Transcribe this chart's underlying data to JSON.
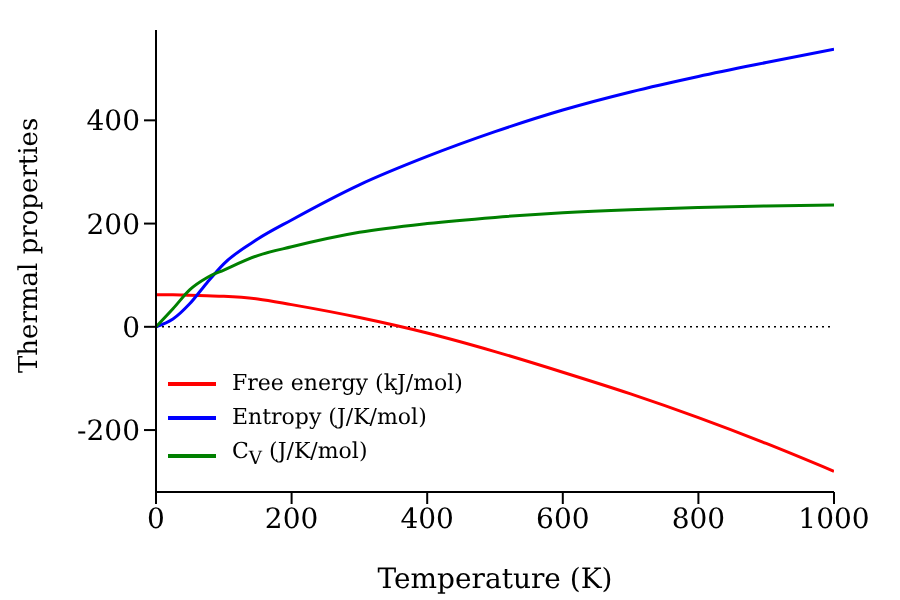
{
  "chart_data": {
    "type": "line",
    "xlabel": "Temperature (K)",
    "ylabel": "Thermal properties",
    "x": [
      0,
      25,
      50,
      75,
      100,
      150,
      200,
      300,
      400,
      500,
      600,
      700,
      800,
      900,
      1000
    ],
    "series": [
      {
        "name": "Free energy (kJ/mol)",
        "color": "#ff0000",
        "values": [
          62,
          62,
          61,
          60,
          59,
          54,
          43,
          18,
          -12,
          -48,
          -88,
          -130,
          -176,
          -226,
          -280
        ]
      },
      {
        "name": "Entropy (J/K/mol)",
        "color": "#0000ff",
        "values": [
          0,
          15,
          45,
          85,
          122,
          170,
          207,
          275,
          330,
          378,
          420,
          455,
          485,
          512,
          538
        ]
      },
      {
        "name": "C$_{V}$ (J/K/mol)",
        "color": "#008000",
        "values": [
          0,
          35,
          72,
          95,
          110,
          138,
          155,
          183,
          200,
          212,
          221,
          227,
          231,
          234,
          236
        ]
      }
    ],
    "xlim": [
      0,
      1000
    ],
    "xticks": [
      0,
      200,
      400,
      600,
      800,
      1000
    ],
    "ylim": [
      -320,
      575
    ],
    "yticks": [
      -200,
      0,
      200,
      400
    ],
    "ref_lines": [
      {
        "axis": "y",
        "value": 0,
        "color": "#000000",
        "line_style": "dotted"
      }
    ],
    "legend": "bottom left",
    "grid": false,
    "marker": "none",
    "line_style": "solid"
  }
}
